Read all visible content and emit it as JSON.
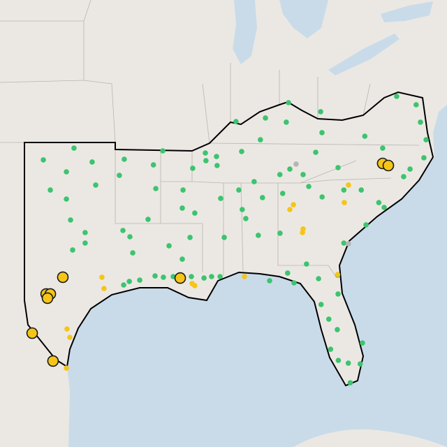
{
  "groups": [
    {
      "color": "#3cc46e",
      "stroke": "none",
      "large": false,
      "points": [
        [
          -99.67,
          36.23
        ],
        [
          -101.73,
          35.67
        ],
        [
          -100.18,
          35.1
        ],
        [
          -98.45,
          35.57
        ],
        [
          -96.29,
          35.7
        ],
        [
          -101.26,
          34.23
        ],
        [
          -98.21,
          34.47
        ],
        [
          -100.18,
          33.8
        ],
        [
          -96.62,
          34.93
        ],
        [
          -94.17,
          34.3
        ],
        [
          -99.9,
          32.8
        ],
        [
          -98.92,
          32.2
        ],
        [
          -96.38,
          32.3
        ],
        [
          -94.69,
          32.83
        ],
        [
          -99.76,
          31.37
        ],
        [
          -98.92,
          31.7
        ],
        [
          -95.91,
          32.0
        ],
        [
          -95.72,
          31.23
        ],
        [
          -96.33,
          29.7
        ],
        [
          -95.95,
          29.87
        ],
        [
          -95.25,
          29.93
        ],
        [
          -94.22,
          30.13
        ],
        [
          -93.66,
          30.07
        ],
        [
          -93.0,
          30.1
        ],
        [
          -91.78,
          30.1
        ],
        [
          -90.93,
          30.03
        ],
        [
          -90.42,
          30.1
        ],
        [
          -89.85,
          30.1
        ],
        [
          -92.39,
          33.37
        ],
        [
          -91.87,
          31.97
        ],
        [
          -93.28,
          31.57
        ],
        [
          -92.39,
          30.93
        ],
        [
          -91.69,
          35.27
        ],
        [
          -90.84,
          36.0
        ],
        [
          -90.09,
          35.83
        ],
        [
          -90.05,
          35.4
        ],
        [
          -91.55,
          33.13
        ],
        [
          -89.57,
          31.97
        ],
        [
          -89.81,
          33.83
        ],
        [
          -88.59,
          34.23
        ],
        [
          -88.12,
          32.87
        ],
        [
          -87.28,
          32.07
        ],
        [
          -87.0,
          33.87
        ],
        [
          -85.64,
          34.07
        ],
        [
          -85.82,
          32.17
        ],
        [
          -88.4,
          36.07
        ],
        [
          -87.14,
          36.63
        ],
        [
          -85.25,
          38.4
        ],
        [
          -85.4,
          37.47
        ],
        [
          -83.09,
          37.97
        ],
        [
          -83.0,
          36.97
        ],
        [
          -83.42,
          36.03
        ],
        [
          -85.16,
          35.23
        ],
        [
          -83.89,
          34.4
        ],
        [
          -82.99,
          33.9
        ],
        [
          -81.53,
          34.23
        ],
        [
          -80.36,
          34.23
        ],
        [
          -79.18,
          33.63
        ],
        [
          -77.51,
          34.87
        ],
        [
          -77.08,
          35.23
        ],
        [
          -76.15,
          35.77
        ],
        [
          -76.38,
          37.47
        ],
        [
          -76.0,
          36.63
        ],
        [
          -77.98,
          38.7
        ],
        [
          -76.67,
          38.3
        ],
        [
          -80.12,
          36.8
        ],
        [
          -81.92,
          35.3
        ],
        [
          -81.53,
          31.7
        ],
        [
          -81.95,
          30.17
        ],
        [
          -81.92,
          29.27
        ],
        [
          -83.23,
          30.0
        ],
        [
          -84.88,
          29.8
        ],
        [
          -86.52,
          29.9
        ],
        [
          -84.04,
          30.7
        ],
        [
          -83.06,
          28.77
        ],
        [
          -82.54,
          28.07
        ],
        [
          -81.97,
          27.57
        ],
        [
          -80.28,
          26.93
        ],
        [
          -80.43,
          25.93
        ],
        [
          -81.23,
          25.97
        ],
        [
          -81.1,
          25.03
        ],
        [
          -82.42,
          26.63
        ],
        [
          -81.9,
          26.1
        ],
        [
          -84.27,
          34.97
        ],
        [
          -88.78,
          37.5
        ],
        [
          -86.8,
          37.67
        ],
        [
          -90.8,
          35.63
        ],
        [
          -93.7,
          36.1
        ],
        [
          -92.34,
          34.23
        ],
        [
          -94.33,
          35.43
        ],
        [
          -78.82,
          33.4
        ],
        [
          -80.04,
          32.57
        ],
        [
          -85.83,
          34.97
        ],
        [
          -87.56,
          34.63
        ],
        [
          -88.36,
          33.3
        ],
        [
          -85.31,
          30.27
        ],
        [
          -78.92,
          36.23
        ]
      ]
    },
    {
      "color": "#f5c518",
      "stroke": "none",
      "large": false,
      "points": [
        [
          -97.79,
          30.07
        ],
        [
          -97.65,
          29.53
        ],
        [
          -100.14,
          27.6
        ],
        [
          -99.95,
          27.2
        ],
        [
          -100.18,
          25.73
        ],
        [
          -91.73,
          29.77
        ],
        [
          -91.55,
          29.67
        ],
        [
          -88.21,
          30.1
        ],
        [
          -84.27,
          32.37
        ],
        [
          -84.31,
          32.2
        ],
        [
          -84.92,
          33.53
        ],
        [
          -85.16,
          33.3
        ],
        [
          -81.22,
          34.47
        ],
        [
          -81.5,
          33.63
        ],
        [
          -81.95,
          30.2
        ]
      ]
    },
    {
      "color": "#b5b5b5",
      "stroke": "none",
      "large": false,
      "points": [
        [
          -84.74,
          35.47
        ],
        [
          -81.22,
          31.67
        ]
      ]
    },
    {
      "color": "#f5c518",
      "stroke": "#1a1a1a",
      "large": true,
      "points": [
        [
          -100.42,
          30.07
        ],
        [
          -101.54,
          29.27
        ],
        [
          -101.26,
          29.27
        ],
        [
          -101.45,
          29.07
        ],
        [
          -102.48,
          27.4
        ],
        [
          -101.08,
          26.07
        ],
        [
          -92.53,
          30.03
        ],
        [
          -78.92,
          35.5
        ],
        [
          -78.54,
          35.4
        ]
      ]
    }
  ]
}
